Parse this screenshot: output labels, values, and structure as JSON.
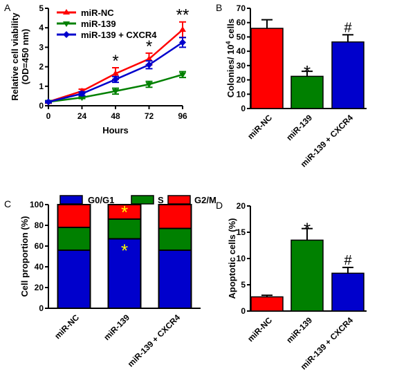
{
  "chart_data": [
    {
      "panel": "A",
      "type": "line",
      "xlabel": "Hours",
      "ylabel": "Relative cell viability (OD=450 nm)",
      "x": [
        0,
        24,
        48,
        72,
        96
      ],
      "xticks": [
        "0",
        "24",
        "48",
        "72",
        "96"
      ],
      "ylim": [
        0,
        5
      ],
      "yticks": [
        "0",
        "1",
        "2",
        "3",
        "4",
        "5"
      ],
      "series": [
        {
          "name": "miR-NC",
          "color": "#ff0000",
          "marker": "triangle-up",
          "values": [
            0.2,
            0.75,
            1.65,
            2.4,
            3.9
          ],
          "errors": [
            0.05,
            0.1,
            0.3,
            0.3,
            0.4
          ]
        },
        {
          "name": "miR-139",
          "color": "#008000",
          "marker": "triangle-down",
          "values": [
            0.2,
            0.42,
            0.75,
            1.1,
            1.6
          ],
          "errors": [
            0.05,
            0.05,
            0.15,
            0.15,
            0.15
          ]
        },
        {
          "name": "miR-139 + CXCR4",
          "color": "#0000cc",
          "marker": "diamond",
          "values": [
            0.2,
            0.62,
            1.35,
            2.1,
            3.25
          ],
          "errors": [
            0.05,
            0.1,
            0.15,
            0.2,
            0.25
          ]
        }
      ],
      "annotations": [
        {
          "x": 48,
          "text": "*"
        },
        {
          "x": 72,
          "text": "*"
        },
        {
          "x": 96,
          "text": "**"
        }
      ]
    },
    {
      "panel": "B",
      "type": "bar",
      "ylabel": "Colonies/ 10^4 cells",
      "ylabel_main": "Colonies/ 10",
      "ylabel_sup": "4",
      "ylabel_tail": " cells",
      "ylim": [
        0,
        70
      ],
      "yticks": [
        "0",
        "10",
        "20",
        "30",
        "40",
        "50",
        "60",
        "70"
      ],
      "categories": [
        "miR-NC",
        "miR-139",
        "miR-139 + CXCR4"
      ],
      "values": [
        56,
        22.5,
        46.5
      ],
      "errors": [
        6,
        3.5,
        5
      ],
      "colors": [
        "#ff0000",
        "#008000",
        "#0000cc"
      ],
      "annotations": [
        "",
        "*",
        "#"
      ]
    },
    {
      "panel": "C",
      "type": "bar",
      "stacked": true,
      "ylabel": "Cell proportion (%)",
      "ylim": [
        0,
        100
      ],
      "yticks": [
        "0",
        "20",
        "40",
        "60",
        "80",
        "100"
      ],
      "categories": [
        "miR-NC",
        "miR-139",
        "miR-139 + CXCR4"
      ],
      "series": [
        {
          "name": "G0/G1",
          "color": "#0000cc",
          "values": [
            56,
            67,
            56
          ]
        },
        {
          "name": "S",
          "color": "#008000",
          "values": [
            22,
            19,
            21
          ]
        },
        {
          "name": "G2/M",
          "color": "#ff0000",
          "values": [
            22,
            14,
            23
          ]
        }
      ],
      "annotations": [
        {
          "category": "miR-139",
          "series": "G0/G1",
          "text": "*"
        },
        {
          "category": "miR-139",
          "series": "G2/M",
          "text": "*"
        }
      ]
    },
    {
      "panel": "D",
      "type": "bar",
      "ylabel": "Apoptotic cells (%)",
      "ylim": [
        0,
        20
      ],
      "yticks": [
        "0",
        "5",
        "10",
        "15",
        "20"
      ],
      "categories": [
        "miR-NC",
        "miR-139",
        "miR-139 + CXCR4"
      ],
      "values": [
        2.7,
        13.5,
        7.2
      ],
      "errors": [
        0.3,
        2.2,
        1.1
      ],
      "colors": [
        "#ff0000",
        "#008000",
        "#0000cc"
      ],
      "annotations": [
        "",
        "*",
        "#"
      ]
    }
  ]
}
